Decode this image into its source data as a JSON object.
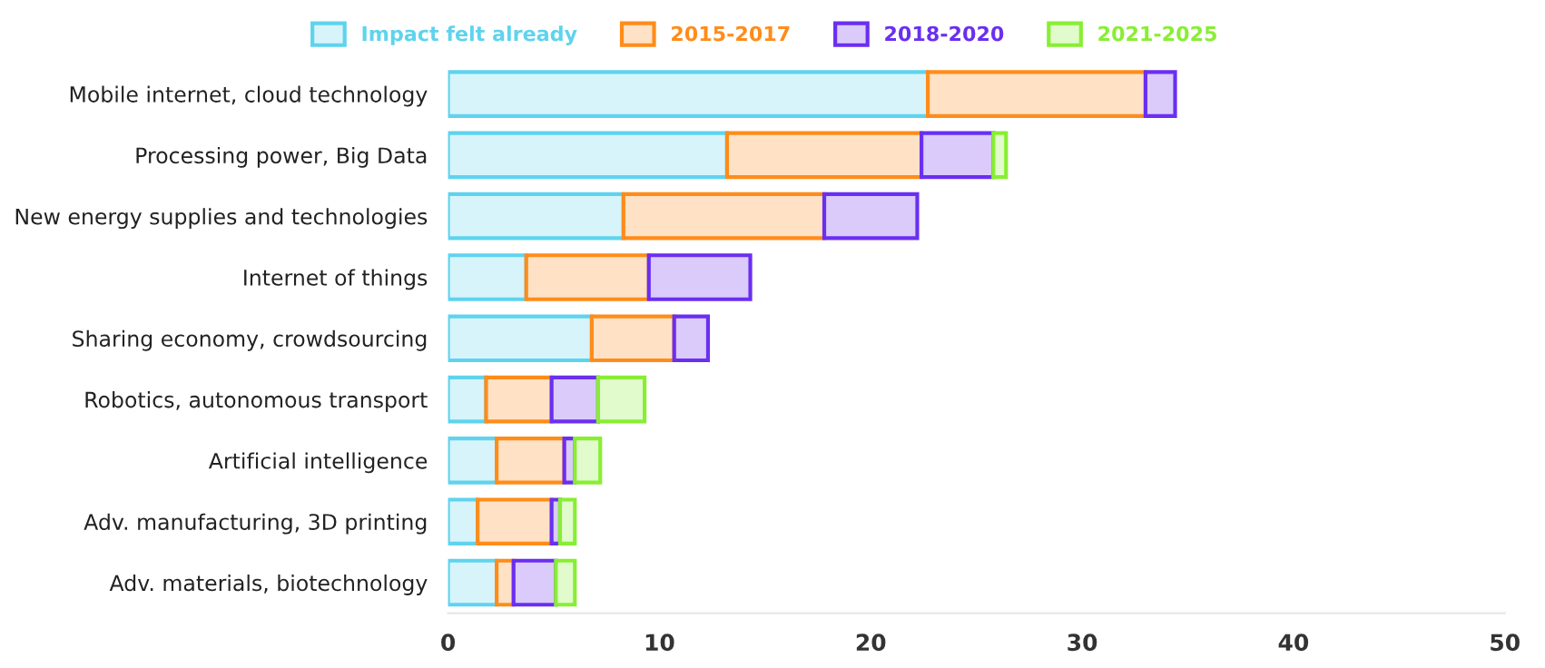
{
  "chart_data": {
    "type": "bar",
    "orientation": "horizontal",
    "stacked": true,
    "legend": "top",
    "grid": false,
    "categories": [
      "Mobile internet, cloud technology",
      "Processing power, Big Data",
      "New energy supplies and technologies",
      "Internet of things",
      "Sharing economy, crowdsourcing",
      "Robotics, autonomous transport",
      "Artificial intelligence",
      "Adv. manufacturing, 3D printing",
      "Adv. materials, biotechnology"
    ],
    "series": [
      {
        "name": "Impact felt already",
        "color": "#5fd3ee",
        "values": [
          22.7,
          13.2,
          8.3,
          3.7,
          6.8,
          1.8,
          2.3,
          1.4,
          2.3
        ]
      },
      {
        "name": "2015-2017",
        "color": "#ff8c1a",
        "values": [
          10.3,
          9.2,
          9.5,
          5.8,
          3.9,
          3.1,
          3.2,
          3.5,
          0.8
        ]
      },
      {
        "name": "2018-2020",
        "color": "#6a2ff0",
        "values": [
          1.4,
          3.4,
          4.4,
          4.8,
          1.6,
          2.2,
          0.5,
          0.4,
          2.0
        ]
      },
      {
        "name": "2021-2025",
        "color": "#88ee33",
        "values": [
          null,
          0.6,
          null,
          null,
          null,
          2.2,
          1.2,
          0.7,
          0.9
        ]
      }
    ],
    "xlim": [
      0,
      50
    ],
    "xticks": [
      0,
      10,
      20,
      30,
      40,
      50
    ]
  }
}
